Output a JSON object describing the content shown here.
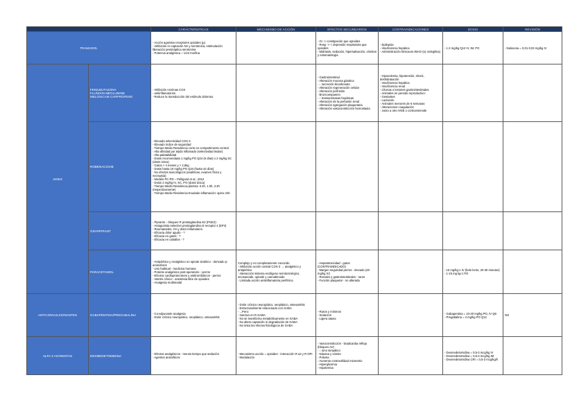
{
  "header": [
    "CARACTERISTICAS",
    "MECANISMO DE ACCIÓN",
    "EFECTOS SECUNDARIOS",
    "CONTRAINDICACIONES",
    "DOSIS",
    "REVISIÓN"
  ],
  "groups": [
    {
      "label": "TRAMADOL",
      "drugs": [
        {
          "cells": [
            [
              "- Acción agonista receptores opioides (µ)",
              "- Inhibición re-captación NA y serotonina, estimulación liberación presináptica serotonina",
              "- Potencia analgésica ~ 1/10 morfina"
            ],
            [],
            [
              "- GI -> constipación que opioides",
              "- Resp -> < depresión respiratoria que opioides",
              "- Midriasis, sedación, hipersalivación, vómitos y estomatología"
            ],
            [
              "- Epilepsia",
              "- Insuficiencia hepática",
              "- Administración fármacos IMAO (ej: selegilina)"
            ],
            [
              "- 1-2 mg/kg Q12 IV, IM, PO"
            ],
            [
              "- Naloxona = 0,01-0,02 mg/kg IV"
            ]
          ]
        }
      ]
    },
    {
      "label": "AINES",
      "drugs": [
        {
          "name": [
            "FENILBUTAZONA",
            "FLUNIXIN MEGLUMINE",
            "MELOXICAM   CARPROFENO"
          ],
          "cells": [
            [
              "- Inhibición enzimas COX",
              "- antiinflamatorios",
              "- Reduce la transducción del estímulo doloroso"
            ],
            [],
            [
              "- Gastrointestinal",
              "- Alteración mucosa gástrica",
              "- ↓ secreción bicarbonato",
              "- Alteración regeneración celular",
              "- Alteración perfusión",
              "- Broncoespasmo",
              "- ↑ transaminasas hepáticas",
              "- Alteración de la perfusión renal",
              "- Alteración agregación plaquetaria",
              "- Alteración vasoconstricción hemostasia"
            ],
            [
              "- Hipovolemia, hipotensión, shock, deshidratación",
              "- Insuficiencia hepática",
              "- Insuficiencia renal",
              "- Úlceras o lesiones gastrointestinales",
              "- Animales en periodo reproductivo:",
              "- Gestantes",
              "- Lactación",
              "- Animales menores de 6 semanas",
              "- Alteraciones coagulación",
              "- Junto a otro AINE o corticosteroide"
            ],
            [],
            []
          ]
        },
        {
          "name": [
            "ROBENACOXIB"
          ],
          "cells": [
            [
              "- Elevada selectividad COX-2",
              "- Elevado índice de seguridad",
              "- Tiempo Medio Residencia corto en compartimento central",
              "- Alta afinidad por tejido inflamado (selectividad tisular)",
              "- Alta palatabilidad",
              "- Dosis recomendada 1 mg/kg PO Q24 (6 días) o 2 mg/kg SC (dosis única)",
              "- Gatos > 4 meses y > 2,5kg",
              "- Dosis hasta 10 mg/kg PO Q24 (hasta 42 días)",
              "- No efectos toxicológicos (analíticas, examen físico y necropsia)",
              "- Modelo PC-PD – Pelligand et al., 2012",
              "- Dosis 2 mg/kg IV, SC, PO (dosis única)",
              "- Tiempo Medio Residencia plasma: 0.4h, 1.0h, 3.3h (respectivamente)",
              "- Tiempo Medio Residencia Exudado inflamación: aprox 24h"
            ],
            [],
            [],
            [],
            [],
            []
          ]
        },
        {
          "name": [
            "GRAPIPRANT"
          ],
          "cells": [
            [
              "- Piprants – bloqueo R prostaglandina E2 (PGE2)",
              "- Antagonista selectivo prostaglandina E receptor 4 (EP4)",
              "- Reumatoides, OA y dolor inflamatorio",
              "- Eficacia dolor agudo - ?",
              "- Eficacia en gatos - ?",
              "- Eficacia en caballos - ?"
            ],
            [],
            [],
            [],
            [],
            []
          ]
        },
        {
          "name": [
            "PARACETAMOL"
          ],
          "cells": [
            [
              "- Antipirético y Analgésico no opiode sintético - derivado p-aminofenol",
              "- Uso habitual - medicina humana",
              "- Potente analgésico post-operatorio - perros",
              "- Efectos cardioprotectores y antitrombóticos - perros",
              "- Interés clínico - anestesia libre de opioides",
              "- Analgesia multimodal"
            ],
            [
              "Complejo y no completamente conocido",
              "- Inhibición acción central COX-3 → analgésico y antipirético",
              "- Interacción sistema endógeno serotoninérgico, eicosanoide, opioide y cannabinoide",
              "- Limitada acción antiinflamatoria periférica"
            ],
            [
              "- Hepatotoxicidad - gatos (CONTRAINDICADO)",
              "- Margen seguridad perros - elevado (20 mg/kg IV)",
              "- Renales y gastrointestinales - raros",
              "- Función plaquetar - no alterada"
            ],
            [],
            [
              "- 10 mg/kg-1 IV (bolo lento, 20-30 minutos)",
              "- 1-15 mg kg-1 PO"
            ],
            []
          ]
        }
      ]
    },
    {
      "label": "ANTICONVULSIONANTES",
      "drugs": [
        {
          "name": [
            "GABAPENTINA/PREGABALINA"
          ],
          "cells": [
            [
              "- Co-adyuvante analgesia",
              "- Dolor crónico neuropático, neoplásico, osteoartritis"
            ],
            [
              "- Dolor crónico neuropático, neoplásico, osteoartritis",
              "- Estructuralmente relacionado con GABA",
              "- ...Pero:",
              "- Inactivo en R GABA",
              "- No se transforma metabólicamente en GABA",
              "- No altera captación ni degradación de GABA",
              "- No imita los efectos fisiológicos de GABA"
            ],
            [
              "- Raros y mínimos",
              "- Sedación",
              "- Ligera ataxia"
            ],
            [],
            [
              "- Gabapentina = 10-20 mg/kg PO, IV Q8",
              "- Pregabalina = 4 mg/kg PO Q12"
            ],
            [
              "NO"
            ]
          ]
        }
      ]
    },
    {
      "label": "ALFA 2 AGONISTAS",
      "drugs": [
        {
          "name": [
            "DEXMEDETOMIDINA"
          ],
          "cells": [
            [
              "- Efectos analgésicos - menos tiempo que sedación",
              "- Agentes ansiolíticos"
            ],
            [
              "- Mecanismo acción = opioides - interacción R α2 y R OPI",
              "- Modulación"
            ],
            [
              "- Vasoconstricción - bradicardia refleja (bloqueo AV)",
              "- ↓ tono simpático",
              "- Náusea y vómito",
              "- Poliuria",
              "- Aumento contractilidad miometrio",
              "- Hiperglicemia",
              "- Hipotermia"
            ],
            [],
            [
              "- Dexmedetomidina = 0,5-3 mcg/kg IV",
              "- Dexmedetomidina = 0,5-3 mcg/kg IM",
              "- Dexmedetomidina CRI = 0,5-3 mcg/kg/h"
            ],
            []
          ]
        }
      ]
    }
  ]
}
